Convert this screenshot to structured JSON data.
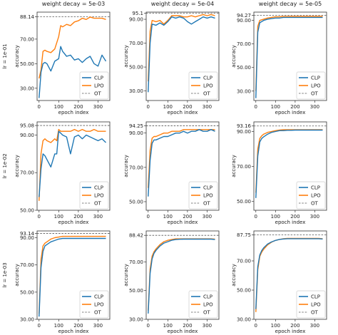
{
  "chart_data": {
    "type": "line",
    "layout": "3x3 grid",
    "grid": false,
    "legend_placement": "lower right",
    "column_titles": [
      "weight decay = 5e-03",
      "weight decay = 5e-04",
      "weight decay = 5e-05"
    ],
    "row_labels": [
      "lr = 1e-01",
      "lr = 1e-02",
      "lr = 1e-03"
    ],
    "xlabel": "epoch index",
    "ylabel": "accuracy",
    "xlim": [
      -10,
      360
    ],
    "xticks": [
      0,
      100,
      200,
      300
    ],
    "legend": [
      "CLP",
      "LPO",
      "OT"
    ],
    "colors": {
      "CLP": "#1f77b4",
      "LPO": "#ff7f0e",
      "OT": "#555555"
    },
    "panels": [
      {
        "row": 0,
        "col": 0,
        "ylim": [
          20,
          92
        ],
        "yticks": [
          30.0,
          50.0,
          70.0,
          90.0
        ],
        "ot": 88.14,
        "ot_label": "88.14",
        "x": [
          0,
          10,
          20,
          30,
          40,
          60,
          80,
          100,
          110,
          120,
          140,
          160,
          180,
          200,
          220,
          240,
          260,
          280,
          300,
          320,
          340
        ],
        "series": [
          {
            "name": "CLP",
            "values": [
              22,
              43,
              50,
              51,
              50,
              44,
              52,
              54,
              64,
              60,
              56,
              57,
              53,
              54,
              51,
              54,
              56,
              50,
              48,
              57,
              52
            ]
          },
          {
            "name": "LPO",
            "values": [
              38,
              45,
              60,
              61,
              60,
              59,
              62,
              72,
              81,
              80,
              82,
              81,
              84,
              85,
              87,
              86,
              88,
              87,
              87,
              87,
              86
            ]
          }
        ]
      },
      {
        "row": 0,
        "col": 1,
        "ylim": [
          22,
          96
        ],
        "yticks": [
          30.0,
          50.0,
          70.0,
          90.0
        ],
        "ot": 95.1,
        "ot_label": "95.1",
        "x": [
          0,
          10,
          20,
          40,
          60,
          80,
          100,
          110,
          120,
          140,
          160,
          180,
          200,
          220,
          240,
          260,
          280,
          300,
          320,
          340
        ],
        "series": [
          {
            "name": "CLP",
            "values": [
              29,
              70,
              86,
              85,
              87,
              85,
              88,
              90,
              92,
              91,
              92,
              91,
              88,
              86,
              88,
              90,
              92,
              91,
              92,
              91
            ]
          },
          {
            "name": "LPO",
            "values": [
              38,
              80,
              89,
              88,
              89,
              86,
              89,
              91,
              93,
              93,
              93,
              92,
              92,
              93,
              92,
              93,
              94,
              93,
              94,
              93
            ]
          }
        ]
      },
      {
        "row": 0,
        "col": 2,
        "ylim": [
          22,
          97
        ],
        "yticks": [
          30.0,
          50.0,
          70.0,
          90.0
        ],
        "ot": 94.27,
        "ot_label": "94.27",
        "x": [
          0,
          10,
          20,
          40,
          60,
          80,
          100,
          120,
          140,
          160,
          180,
          200,
          220,
          240,
          260,
          280,
          300,
          320,
          340
        ],
        "series": [
          {
            "name": "CLP",
            "values": [
              24,
              80,
              88,
              90,
              91,
              91.5,
              92,
              92,
              92.5,
              92.5,
              92.5,
              92.5,
              92.5,
              92.5,
              92.5,
              92.5,
              92.5,
              92.5,
              92.5
            ]
          },
          {
            "name": "LPO",
            "values": [
              30,
              85,
              90,
              91,
              92,
              92.5,
              93,
              93,
              93.3,
              93.3,
              93.4,
              93.4,
              93.4,
              93.4,
              93.4,
              93.4,
              93.4,
              93.4,
              93.4
            ]
          }
        ]
      },
      {
        "row": 1,
        "col": 0,
        "ylim": [
          50,
          97
        ],
        "yticks": [
          50.0,
          70.0,
          90.0
        ],
        "ot": 95.08,
        "ot_label": "95.08",
        "x": [
          0,
          10,
          20,
          30,
          40,
          60,
          80,
          90,
          100,
          110,
          120,
          140,
          160,
          180,
          200,
          220,
          240,
          260,
          280,
          300,
          320,
          340
        ],
        "series": [
          {
            "name": "CLP",
            "values": [
              57,
              72,
              80,
              79,
              77,
              73,
              80,
              80,
              92,
              91,
              90,
              89,
              80,
              89,
              90,
              88,
              90,
              89,
              88,
              87,
              88,
              86
            ]
          },
          {
            "name": "LPO",
            "values": [
              55,
              80,
              87,
              88,
              87,
              86,
              88,
              87,
              93,
              92,
              92,
              92,
              92,
              93,
              92,
              93,
              92,
              92,
              93,
              92,
              92,
              92
            ]
          }
        ]
      },
      {
        "row": 1,
        "col": 1,
        "ylim": [
          45,
          96.5
        ],
        "yticks": [
          50.0,
          70.0,
          90.0
        ],
        "ot": 94.25,
        "ot_label": "94.25",
        "x": [
          0,
          10,
          20,
          30,
          40,
          60,
          80,
          100,
          120,
          140,
          160,
          180,
          200,
          220,
          240,
          260,
          280,
          300,
          320,
          340
        ],
        "series": [
          {
            "name": "CLP",
            "values": [
              53,
              74,
              84,
              86,
              86,
              87,
              88,
              88,
              89,
              90,
              90,
              91,
              90,
              91,
              91,
              92,
              91,
              91,
              92,
              91
            ]
          },
          {
            "name": "LPO",
            "values": [
              58,
              80,
              87,
              88,
              88,
              89,
              90,
              90,
              91,
              91,
              91,
              92,
              92,
              92,
              92,
              92,
              92,
              92,
              92,
              92
            ]
          }
        ]
      },
      {
        "row": 1,
        "col": 2,
        "ylim": [
          45,
          95.5
        ],
        "yticks": [
          50.0,
          70.0,
          90.0
        ],
        "ot": 93.16,
        "ot_label": "93.16",
        "x": [
          0,
          10,
          20,
          30,
          40,
          60,
          80,
          100,
          120,
          140,
          160,
          180,
          200,
          240,
          280,
          320,
          340
        ],
        "series": [
          {
            "name": "CLP",
            "values": [
              52,
              76,
              84,
              86,
              87,
              88.5,
              89.5,
              90,
              90.5,
              90.5,
              90.7,
              90.7,
              90.8,
              90.8,
              90.8,
              90.8,
              90.8
            ]
          },
          {
            "name": "LPO",
            "values": [
              55,
              80,
              86,
              87.5,
              88.5,
              89.5,
              90,
              90.5,
              90.8,
              91,
              91,
              91,
              91,
              91,
              91,
              91,
              91
            ]
          }
        ]
      },
      {
        "row": 2,
        "col": 0,
        "ylim": [
          30,
          95
        ],
        "yticks": [
          30.0,
          50.0,
          70.0,
          90.0
        ],
        "ot": 93.14,
        "ot_label": "93.14",
        "x": [
          0,
          10,
          20,
          30,
          40,
          60,
          80,
          100,
          120,
          140,
          160,
          180,
          200,
          240,
          280,
          320,
          340
        ],
        "series": [
          {
            "name": "CLP",
            "values": [
              32,
              68,
              80,
              84,
              85,
              87,
              88,
              89,
              89.5,
              89.5,
              89.5,
              89.5,
              89.5,
              89.5,
              89.5,
              89.5,
              89.5
            ]
          },
          {
            "name": "LPO",
            "values": [
              34,
              74,
              84,
              86,
              87,
              89,
              90,
              90.5,
              91,
              91,
              91,
              91,
              91,
              91,
              91,
              91,
              91
            ]
          }
        ]
      },
      {
        "row": 2,
        "col": 1,
        "ylim": [
          30,
          91.5
        ],
        "yticks": [
          30.0,
          50.0,
          70.0
        ],
        "ot": 88.42,
        "ot_label": "88.42",
        "x": [
          0,
          10,
          20,
          30,
          40,
          60,
          80,
          100,
          120,
          140,
          160,
          180,
          200,
          240,
          280,
          320,
          340
        ],
        "series": [
          {
            "name": "CLP",
            "values": [
              34,
              62,
              72,
              76,
              78,
              81,
              83,
              84,
              85,
              85.5,
              85.7,
              85.8,
              85.8,
              85.8,
              85.8,
              85.8,
              85.5
            ]
          },
          {
            "name": "LPO",
            "values": [
              36,
              65,
              74,
              77,
              79,
              82,
              84,
              85,
              85.5,
              86,
              86,
              86,
              86,
              86,
              86,
              86,
              85.8
            ]
          }
        ]
      },
      {
        "row": 2,
        "col": 2,
        "ylim": [
          30,
          90.5
        ],
        "yticks": [
          30.0,
          50.0,
          70.0
        ],
        "ot": 87.75,
        "ot_label": "87.75",
        "x": [
          0,
          10,
          20,
          30,
          40,
          60,
          80,
          100,
          120,
          140,
          160,
          180,
          200,
          240,
          280,
          320,
          340
        ],
        "series": [
          {
            "name": "CLP",
            "values": [
              37,
              66,
              74,
              77,
              79,
              81.5,
              83,
              84,
              84.7,
              85,
              85.2,
              85.2,
              85.2,
              85.2,
              85.2,
              85.2,
              85
            ]
          },
          {
            "name": "LPO",
            "values": [
              35,
              64,
              73,
              76,
              78,
              81,
              82.8,
              84,
              84.7,
              85.2,
              85.4,
              85.4,
              85.4,
              85.4,
              85.4,
              85.4,
              85.2
            ]
          }
        ]
      }
    ]
  }
}
